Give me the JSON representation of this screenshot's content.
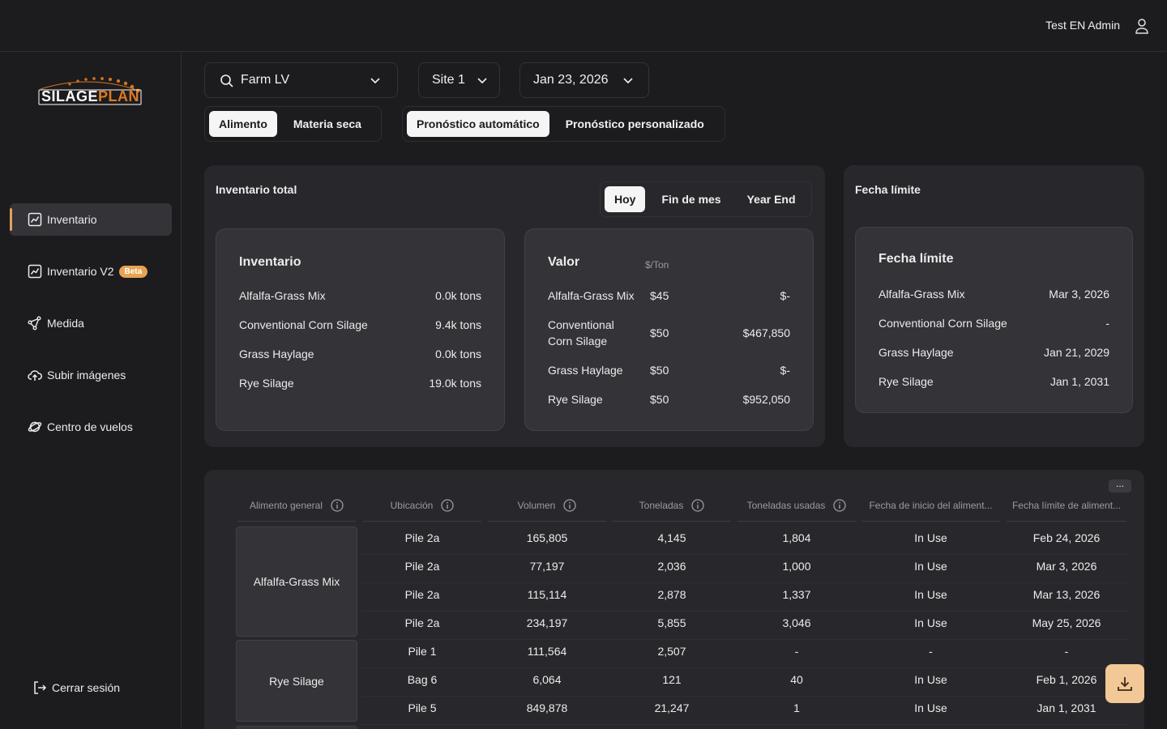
{
  "header": {
    "user_name": "Test EN Admin"
  },
  "logo": {
    "text_main": "SILAGE",
    "text_accent": "PLAN"
  },
  "sidebar": {
    "items": [
      {
        "label": "Inventario",
        "icon": "chart-line-icon",
        "active": true
      },
      {
        "label": "Inventario V2",
        "icon": "chart-line-icon",
        "badge": "Beta"
      },
      {
        "label": "Medida",
        "icon": "measure-icon"
      },
      {
        "label": "Subir imágenes",
        "icon": "cloud-upload-icon"
      },
      {
        "label": "Centro de vuelos",
        "icon": "planet-icon"
      }
    ],
    "logout": "Cerrar sesión"
  },
  "filters": {
    "farm": "Farm LV",
    "site": "Site 1",
    "date": "Jan 23, 2026"
  },
  "toggles": {
    "mode": [
      "Alimento",
      "Materia seca"
    ],
    "mode_selected": "Alimento",
    "forecast": [
      "Pronóstico automático",
      "Pronóstico personalizado"
    ],
    "forecast_selected": "Pronóstico automático"
  },
  "inventory_panel": {
    "title": "Inventario total",
    "period_tabs": [
      "Hoy",
      "Fin de mes",
      "Year End"
    ],
    "period_selected": "Hoy",
    "inventory_card": {
      "title": "Inventario",
      "rows": [
        {
          "label": "Alfalfa-Grass Mix",
          "value": "0.0k tons"
        },
        {
          "label": "Conventional Corn Silage",
          "value": "9.4k tons"
        },
        {
          "label": "Grass Haylage",
          "value": "0.0k tons"
        },
        {
          "label": "Rye Silage",
          "value": "19.0k tons"
        }
      ]
    },
    "value_card": {
      "title": "Valor",
      "unit": "$/Ton",
      "rows": [
        {
          "label": "Alfalfa-Grass Mix",
          "price": "$45",
          "total": "$-"
        },
        {
          "label": "Conventional Corn Silage",
          "price": "$50",
          "total": "$467,850"
        },
        {
          "label": "Grass Haylage",
          "price": "$50",
          "total": "$-"
        },
        {
          "label": "Rye Silage",
          "price": "$50",
          "total": "$952,050"
        }
      ]
    }
  },
  "deadline_panel": {
    "title": "Fecha límite",
    "card_title": "Fecha límite",
    "rows": [
      {
        "label": "Alfalfa-Grass Mix",
        "value": "Mar 3, 2026"
      },
      {
        "label": "Conventional Corn Silage",
        "value": "-"
      },
      {
        "label": "Grass Haylage",
        "value": "Jan 21, 2029"
      },
      {
        "label": "Rye Silage",
        "value": "Jan 1, 2031"
      }
    ]
  },
  "table": {
    "more_label": "...",
    "columns": [
      "Alimento general",
      "Ubicación",
      "Volumen",
      "Toneladas",
      "Toneladas usadas",
      "Fecha de inicio del aliment...",
      "Fecha límite de aliment..."
    ],
    "groups": [
      {
        "name": "Alfalfa-Grass Mix",
        "rows": [
          [
            "Pile 2a",
            "165,805",
            "4,145",
            "1,804",
            "In Use",
            "Feb 24, 2026"
          ],
          [
            "Pile 2a",
            "77,197",
            "2,036",
            "1,000",
            "In Use",
            "Mar 3, 2026"
          ],
          [
            "Pile 2a",
            "115,114",
            "2,878",
            "1,337",
            "In Use",
            "Mar 13, 2026"
          ],
          [
            "Pile 2a",
            "234,197",
            "5,855",
            "3,046",
            "In Use",
            "May 25, 2026"
          ]
        ]
      },
      {
        "name": "Rye Silage",
        "rows": [
          [
            "Pile 1",
            "111,564",
            "2,507",
            "-",
            "-",
            "-"
          ],
          [
            "Bag 6",
            "6,064",
            "121",
            "40",
            "In Use",
            "Feb 1, 2026"
          ],
          [
            "Pile 5",
            "849,878",
            "21,247",
            "1",
            "In Use",
            "Jan 1, 2031"
          ]
        ]
      }
    ]
  },
  "colors": {
    "background": "#1c1c1f",
    "panel": "#28282c",
    "card": "#333338",
    "accent": "#e8a352",
    "download_button": "#f2c896"
  }
}
